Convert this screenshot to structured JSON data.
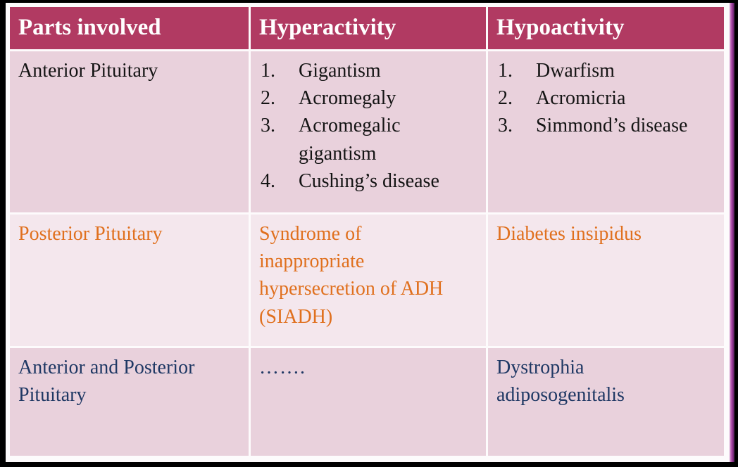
{
  "table": {
    "headers": [
      "Parts involved",
      "Hyperactivity",
      "Hypoactivity"
    ],
    "rows": [
      {
        "part": "Anterior Pituitary",
        "hyper": {
          "items": [
            "Gigantism",
            "Acromegaly",
            "Acromegalic gigantism",
            "Cushing’s disease"
          ]
        },
        "hypo": {
          "items": [
            "Dwarfism",
            "Acromicria",
            "Simmond’s disease"
          ]
        }
      },
      {
        "part": "Posterior Pituitary",
        "hyper": {
          "text": "Syndrome of inappropriate hypersecretion of ADH (SIADH)"
        },
        "hypo": {
          "text": "Diabetes insipidus"
        }
      },
      {
        "part": "Anterior and Posterior Pituitary",
        "hyper": {
          "text": "……."
        },
        "hypo": {
          "text": "Dystrophia adiposogenitalis"
        }
      }
    ]
  },
  "colors": {
    "header_bg": "#b13a62",
    "header_text": "#ffffff",
    "row_dark_bg": "#e9d1dc",
    "row_light_bg": "#f4e7ed",
    "text_black": "#141414",
    "text_orange": "#e0701e",
    "text_navy": "#1f3864",
    "edge_strip": "#a843a5",
    "frame": "#000000"
  }
}
